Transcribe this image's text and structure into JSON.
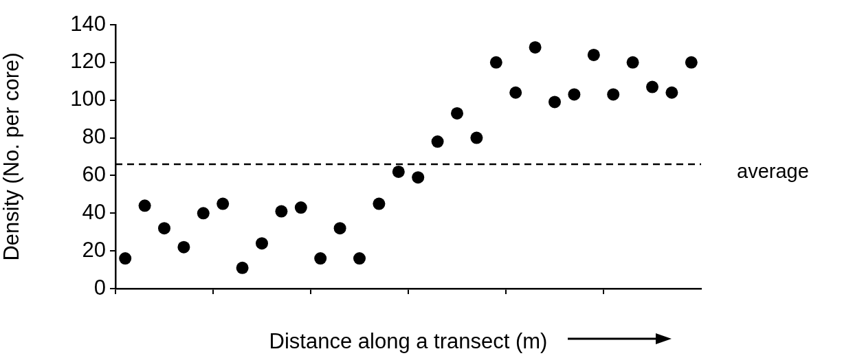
{
  "chart_data": {
    "type": "scatter",
    "xlabel": "Distance along a transect (m)",
    "ylabel": "Density (No. per core)",
    "categories": [
      null,
      null,
      null,
      null,
      null,
      null,
      null,
      null,
      null,
      null,
      null,
      null,
      null,
      null,
      null,
      null,
      null,
      null,
      null,
      null,
      null,
      null,
      null,
      null,
      null,
      null,
      null,
      null,
      null,
      null
    ],
    "series": [
      {
        "color": "#000000",
        "values": [
          16,
          44,
          32,
          22,
          40,
          45,
          11,
          24,
          41,
          43,
          16,
          32,
          16,
          45,
          62,
          59,
          78,
          93,
          80,
          120,
          104,
          128,
          99,
          103,
          124,
          103,
          120,
          107,
          104,
          120
        ]
      }
    ],
    "ylim": [
      0,
      140
    ],
    "yticks": [
      0,
      20,
      40,
      60,
      80,
      100,
      120,
      140
    ],
    "grid": false,
    "legend": false,
    "marker": "circle",
    "ref_lines": [
      {
        "axis": "y",
        "value": 66,
        "label": "average",
        "color": "#000000",
        "line_style": "dashed"
      }
    ]
  }
}
